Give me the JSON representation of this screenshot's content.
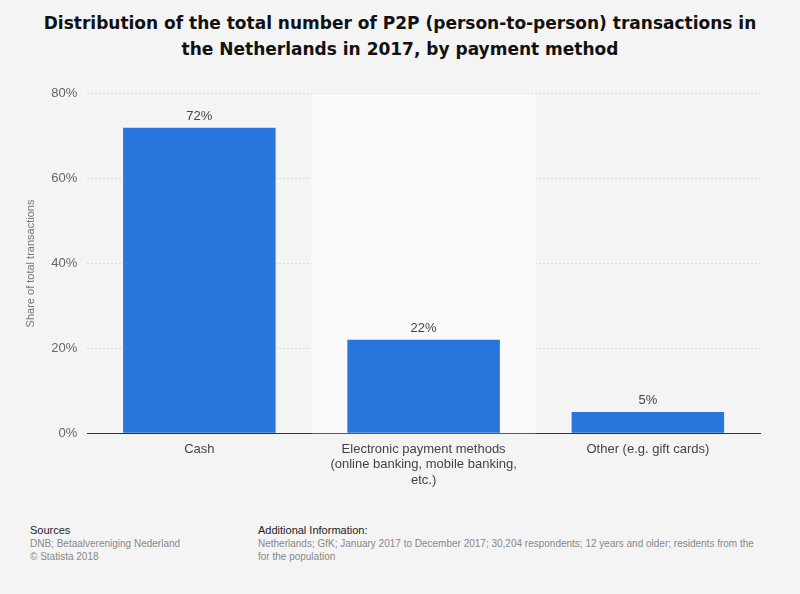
{
  "chart_data": {
    "type": "bar",
    "title": "Distribution of the total number of P2P (person-to-person) transactions in the Netherlands in 2017, by payment method",
    "ylabel": "Share of total transactions",
    "categories": [
      "Cash",
      "Electronic payment methods (online banking, mobile banking, etc.)",
      "Other (e.g. gift cards)"
    ],
    "values": [
      72,
      22,
      5
    ],
    "value_labels": [
      "72%",
      "22%",
      "5%"
    ],
    "data_labels": true,
    "color": "#2876dd",
    "ylim": [
      0,
      80
    ],
    "yticks": [
      {
        "value": 0,
        "label": "0%"
      },
      {
        "value": 20,
        "label": "20%"
      },
      {
        "value": 40,
        "label": "40%"
      },
      {
        "value": 60,
        "label": "60%"
      },
      {
        "value": 80,
        "label": "80%"
      }
    ],
    "grid": true
  },
  "footer": {
    "sources_heading": "Sources",
    "sources": [
      "DNB; Betaalvereniging Nederland",
      "© Statista 2018"
    ],
    "additional_heading": "Additional Information:",
    "additional": [
      "Netherlands; GfK; January 2017 to December 2017; 30,204 respondents; 12 years and older; residents from the",
      "for the population"
    ]
  }
}
